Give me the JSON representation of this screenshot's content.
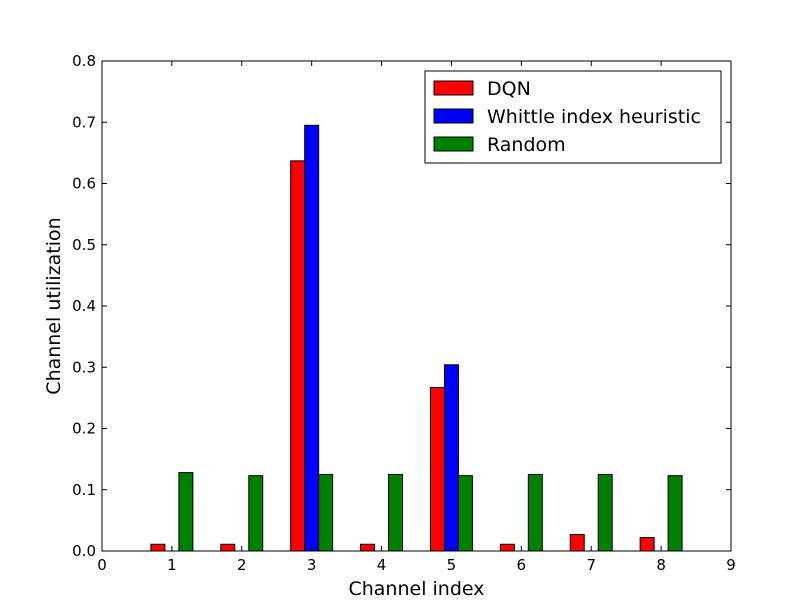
{
  "chart_data": {
    "type": "bar",
    "title": "",
    "xlabel": "Channel index",
    "ylabel": "Channel utilization",
    "xlim": [
      0,
      9
    ],
    "ylim": [
      0,
      0.8
    ],
    "xticks": [
      0,
      1,
      2,
      3,
      4,
      5,
      6,
      7,
      8,
      9
    ],
    "yticks": [
      0.0,
      0.1,
      0.2,
      0.3,
      0.4,
      0.5,
      0.6,
      0.7,
      0.8
    ],
    "xtick_labels": [
      "0",
      "1",
      "2",
      "3",
      "4",
      "5",
      "6",
      "7",
      "8",
      "9"
    ],
    "ytick_labels": [
      "0.0",
      "0.1",
      "0.2",
      "0.3",
      "0.4",
      "0.5",
      "0.6",
      "0.7",
      "0.8"
    ],
    "categories": [
      1,
      2,
      3,
      4,
      5,
      6,
      7,
      8
    ],
    "grid": false,
    "legend_position": "top-right",
    "series": [
      {
        "name": "DQN",
        "color": "#ff0000",
        "values": [
          0.011,
          0.011,
          0.637,
          0.011,
          0.267,
          0.011,
          0.027,
          0.022
        ]
      },
      {
        "name": "Whittle index heuristic",
        "color": "#0000ff",
        "values": [
          0,
          0,
          0.695,
          0,
          0.304,
          0,
          0,
          0
        ]
      },
      {
        "name": "Random",
        "color": "#008000",
        "values": [
          0.128,
          0.123,
          0.125,
          0.125,
          0.123,
          0.125,
          0.125,
          0.123
        ]
      }
    ]
  }
}
